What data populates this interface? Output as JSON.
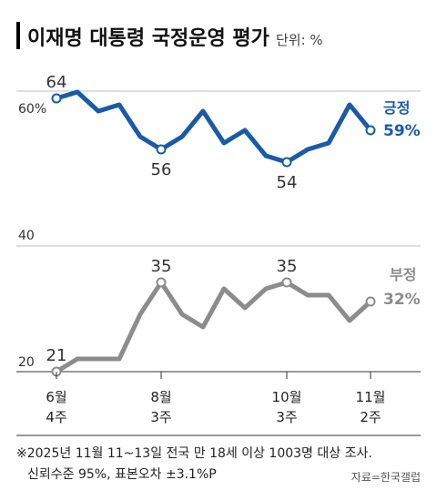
{
  "header": {
    "title": "이재명 대통령 국정운영 평가",
    "unit": "단위: %"
  },
  "chart_data": {
    "type": "line",
    "x": [
      "6월 4주",
      "",
      "",
      "",
      "",
      "8월 3주",
      "",
      "",
      "",
      "",
      "",
      "10월 3주",
      "",
      "",
      "",
      "11월 2주"
    ],
    "x_tick_labels": [
      {
        "index": 0,
        "line1": "6월",
        "line2": "4주"
      },
      {
        "index": 5,
        "line1": "8월",
        "line2": "3주"
      },
      {
        "index": 11,
        "line1": "10월",
        "line2": "3주"
      },
      {
        "index": 15,
        "line1": "11월",
        "line2": "2주"
      }
    ],
    "y_ticks": [
      60,
      40,
      20
    ],
    "y_tick_labels": [
      "60%",
      "40",
      "20"
    ],
    "series": [
      {
        "name": "긍정",
        "label": "긍정",
        "color": "#1a5ba6",
        "values": [
          64,
          65,
          62,
          63,
          58,
          56,
          58,
          62,
          57,
          59,
          55,
          54,
          56,
          57,
          63,
          59
        ],
        "end_label": "59%",
        "annotations": [
          {
            "index": 0,
            "text": "64"
          },
          {
            "index": 5,
            "text": "56"
          },
          {
            "index": 11,
            "text": "54"
          }
        ]
      },
      {
        "name": "부정",
        "label": "부정",
        "color": "#8c8c8c",
        "values": [
          21,
          23,
          23,
          23,
          30,
          35,
          30,
          28,
          34,
          31,
          34,
          35,
          33,
          33,
          29,
          32
        ],
        "end_label": "32%",
        "annotations": [
          {
            "index": 0,
            "text": "21"
          },
          {
            "index": 5,
            "text": "35"
          },
          {
            "index": 11,
            "text": "35"
          }
        ]
      }
    ]
  },
  "footer": {
    "note_line1": "※2025년 11월 11~13일 전국 만 18세 이상 1003명 대상 조사.",
    "note_line2": "신뢰수준 95%, 표본오차 ±3.1%P",
    "source": "자료=한국갤럽"
  }
}
